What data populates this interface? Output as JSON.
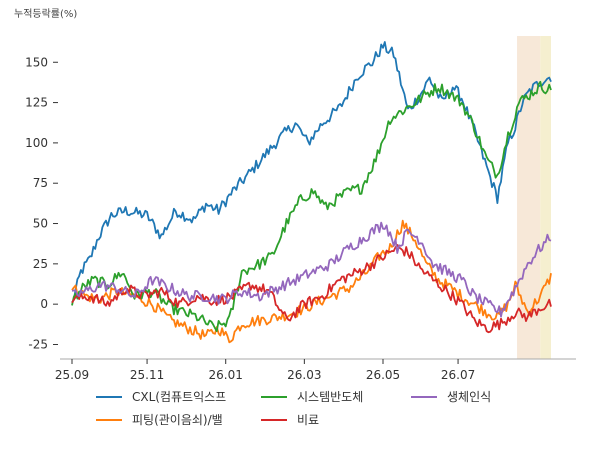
{
  "chart_data": {
    "type": "line",
    "ylabel": "누적등락률(%)",
    "ylim": [
      -34,
      170
    ],
    "yticks": [
      -25,
      0,
      25,
      50,
      75,
      100,
      125,
      150
    ],
    "x_tick_labels": [
      "25.09",
      "25.11",
      "26.01",
      "26.03",
      "26.05",
      "26.07"
    ],
    "x_tick_index": [
      0,
      42,
      86,
      130,
      174,
      216
    ],
    "n_points": 269,
    "shaded_regions": [
      {
        "start": 249,
        "end": 262,
        "color": "#f7e8d8"
      },
      {
        "start": 262,
        "end": 268,
        "color": "#f5efcf"
      }
    ],
    "series": [
      {
        "name": "CXL(컴퓨트익스프",
        "color": "#1f77b4",
        "x": [
          0,
          5,
          10,
          15,
          22,
          30,
          42,
          50,
          58,
          68,
          75,
          82,
          90,
          100,
          110,
          118,
          125,
          132,
          140,
          150,
          160,
          168,
          174,
          180,
          188,
          195,
          200,
          207,
          213,
          218,
          225,
          232,
          238,
          244,
          248,
          252,
          256,
          262,
          268
        ],
        "values": [
          0,
          20,
          28,
          42,
          55,
          58,
          55,
          42,
          58,
          52,
          62,
          58,
          70,
          82,
          95,
          105,
          112,
          100,
          112,
          122,
          142,
          150,
          160,
          155,
          120,
          130,
          140,
          125,
          135,
          128,
          108,
          85,
          66,
          100,
          110,
          125,
          132,
          138,
          141
        ]
      },
      {
        "name": "피팅(관이음쇠)/밸",
        "color": "#ff7f0e",
        "x": [
          0,
          8,
          15,
          25,
          35,
          45,
          55,
          65,
          75,
          82,
          88,
          95,
          105,
          115,
          125,
          135,
          145,
          155,
          165,
          172,
          178,
          185,
          192,
          198,
          205,
          212,
          218,
          225,
          232,
          238,
          244,
          248,
          255,
          262,
          268
        ],
        "values": [
          10,
          5,
          3,
          8,
          5,
          0,
          -10,
          -15,
          -20,
          -15,
          -22,
          -12,
          -10,
          -8,
          -5,
          0,
          5,
          10,
          20,
          30,
          35,
          50,
          40,
          25,
          15,
          10,
          5,
          0,
          -5,
          -8,
          0,
          12,
          -5,
          5,
          17
        ]
      },
      {
        "name": "시스템반도체",
        "color": "#2ca02c",
        "x": [
          0,
          6,
          12,
          20,
          28,
          35,
          45,
          55,
          62,
          70,
          80,
          88,
          95,
          105,
          112,
          120,
          128,
          135,
          142,
          148,
          155,
          162,
          170,
          178,
          185,
          192,
          198,
          205,
          212,
          218,
          225,
          232,
          238,
          244,
          250,
          256,
          262,
          268
        ],
        "values": [
          2,
          10,
          15,
          12,
          20,
          5,
          8,
          -2,
          -5,
          -8,
          -15,
          -10,
          20,
          25,
          30,
          50,
          65,
          70,
          60,
          65,
          70,
          72,
          90,
          115,
          120,
          125,
          130,
          135,
          130,
          125,
          110,
          90,
          80,
          105,
          125,
          130,
          135,
          133
        ]
      },
      {
        "name": "비료",
        "color": "#d62728",
        "x": [
          0,
          10,
          20,
          30,
          40,
          50,
          60,
          70,
          80,
          90,
          100,
          110,
          120,
          130,
          140,
          150,
          160,
          168,
          175,
          182,
          188,
          195,
          202,
          210,
          218,
          225,
          232,
          240,
          248,
          255,
          262,
          268
        ],
        "values": [
          3,
          5,
          0,
          10,
          5,
          8,
          0,
          5,
          2,
          5,
          12,
          8,
          -10,
          0,
          5,
          15,
          20,
          25,
          30,
          35,
          32,
          22,
          15,
          8,
          0,
          -10,
          -15,
          -12,
          -5,
          -8,
          -2,
          0
        ]
      },
      {
        "name": "생체인식",
        "color": "#9467bd",
        "x": [
          0,
          8,
          16,
          25,
          35,
          45,
          55,
          65,
          75,
          85,
          95,
          105,
          115,
          125,
          135,
          145,
          155,
          162,
          168,
          175,
          182,
          188,
          195,
          202,
          210,
          218,
          225,
          232,
          240,
          248,
          255,
          262,
          268
        ],
        "values": [
          5,
          8,
          12,
          10,
          5,
          15,
          10,
          5,
          5,
          3,
          8,
          5,
          10,
          15,
          20,
          25,
          35,
          40,
          45,
          50,
          35,
          45,
          40,
          25,
          20,
          15,
          5,
          0,
          -5,
          10,
          25,
          35,
          42
        ]
      }
    ]
  }
}
